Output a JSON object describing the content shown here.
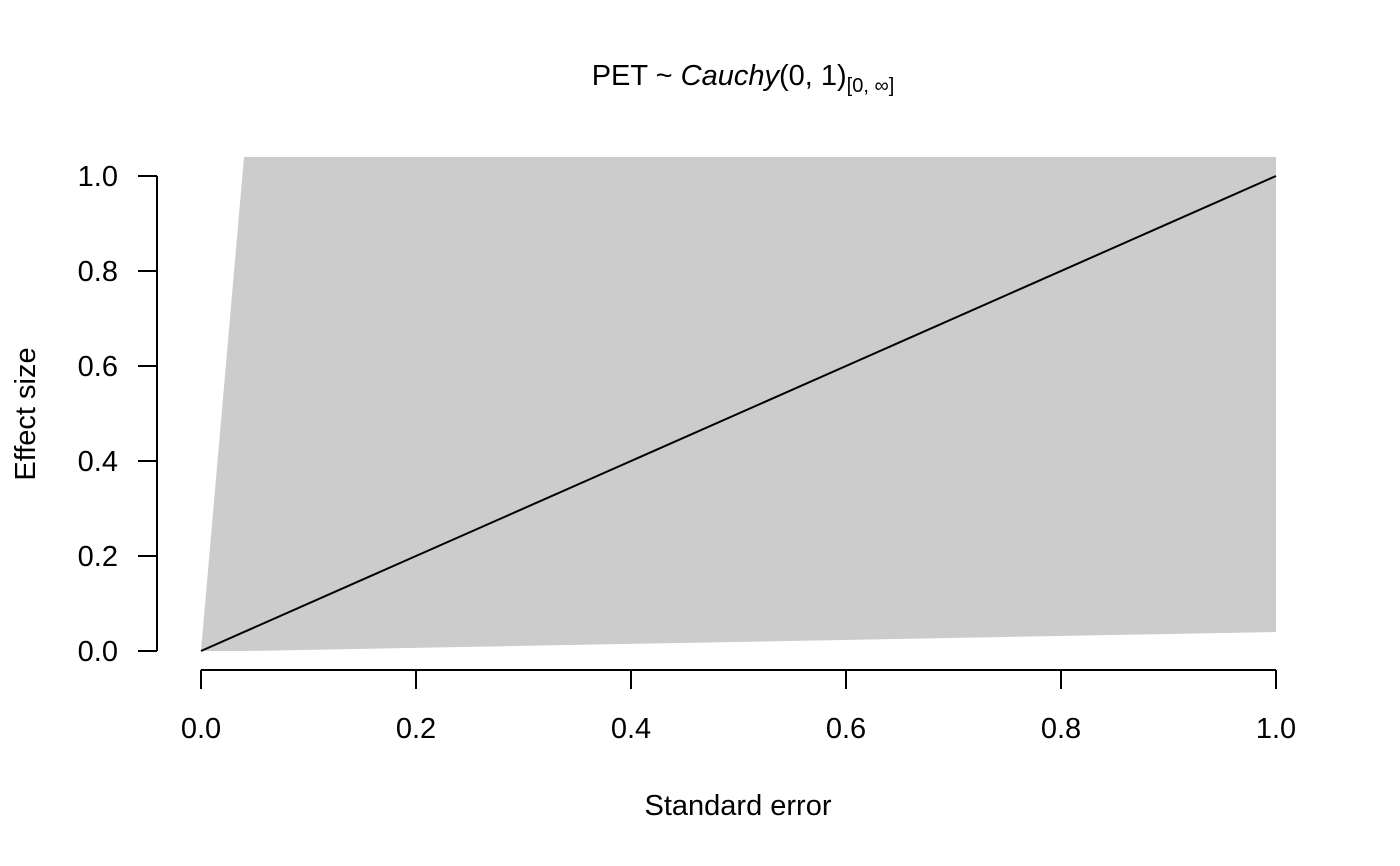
{
  "chart_data": {
    "type": "area",
    "title": {
      "prefix": "PET ~ ",
      "dist": "Cauchy",
      "args": "(0, 1)",
      "subscript": "[0, ∞]"
    },
    "xlabel": "Standard error",
    "ylabel": "Effect size",
    "xlim": [
      0,
      1
    ],
    "ylim": [
      0,
      1
    ],
    "x_ticks": [
      0,
      0.2,
      0.4,
      0.6,
      0.8,
      1
    ],
    "x_tick_labels": [
      "0.0",
      "0.2",
      "0.4",
      "0.6",
      "0.8",
      "1.0"
    ],
    "y_ticks": [
      0,
      0.2,
      0.4,
      0.6,
      0.8,
      1
    ],
    "y_tick_labels": [
      "0.0",
      "0.2",
      "0.4",
      "0.6",
      "0.8",
      "1.0"
    ],
    "grid": false,
    "series": [
      {
        "kind": "interval",
        "color": "#cccccc",
        "x": [
          0,
          0.04,
          1
        ],
        "upper": [
          0,
          1.04,
          1.04
        ],
        "lower": [
          0,
          0,
          0.04
        ]
      },
      {
        "kind": "line",
        "color": "#000000",
        "x": [
          0,
          1
        ],
        "y": [
          0,
          1
        ]
      }
    ]
  }
}
